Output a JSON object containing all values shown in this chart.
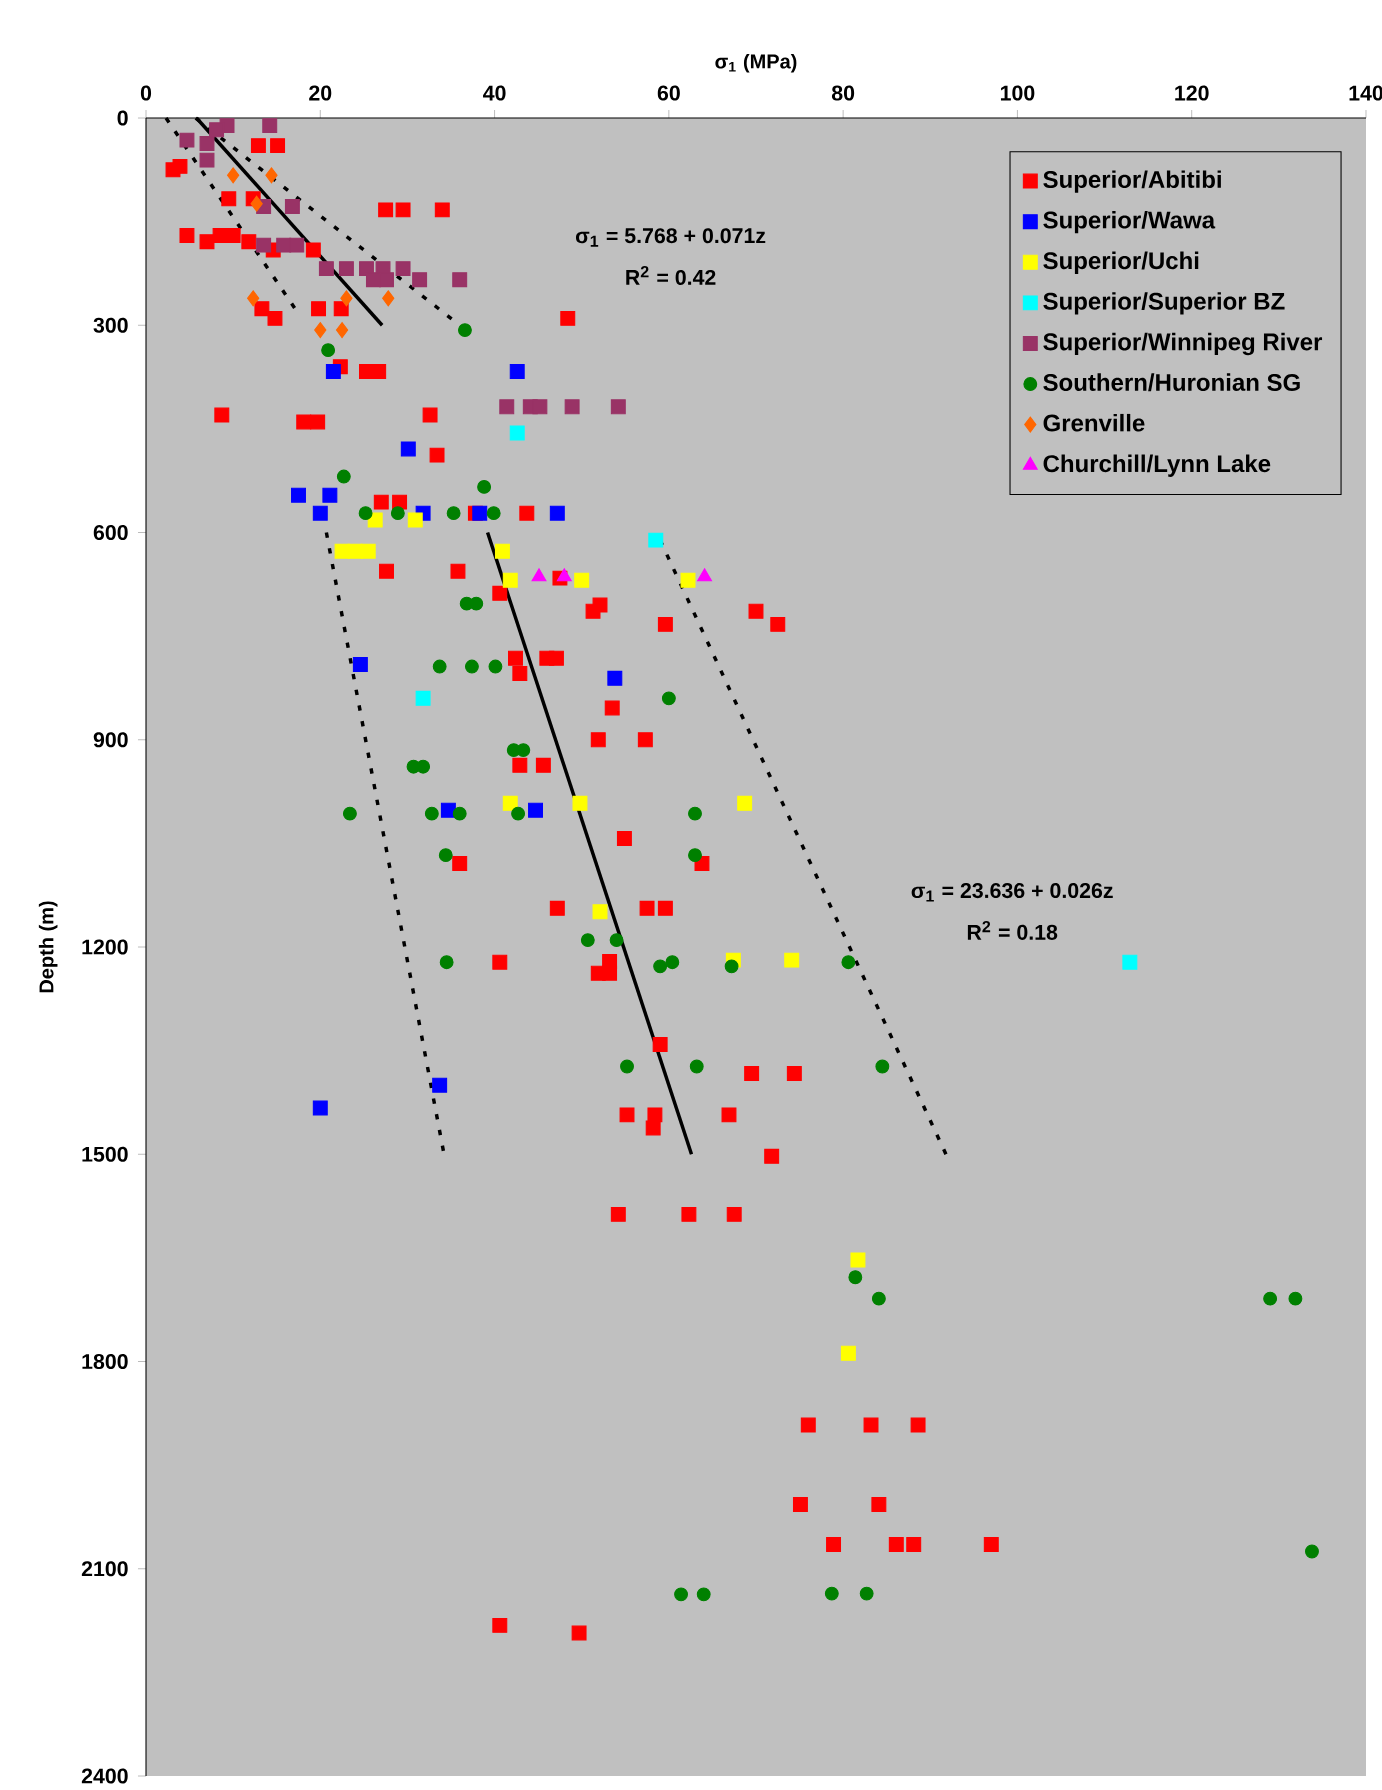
{
  "chart_data": {
    "type": "scatter",
    "xlabel": "σ$_{1}$ (MPa)",
    "ylabel": "Depth (m)",
    "xlim": [
      0,
      140
    ],
    "xticks": [
      0,
      20,
      40,
      60,
      80,
      100,
      120,
      140
    ],
    "ylim": [
      2400,
      0
    ],
    "yticks": [
      0,
      300,
      600,
      900,
      1200,
      1500,
      1800,
      2100,
      2400
    ],
    "grid": false,
    "legend": "top right",
    "annotations": [
      "σ$_{1}$ = 5.768 + 0.071z",
      "R$^{2}$ = 0.42",
      "σ$_{1}$ = 23.636 + 0.026z",
      "R$^{2}$ = 0.18"
    ],
    "series": [
      {
        "name": "Superior/Abitibi",
        "color": "#ff0000",
        "marker": "square",
        "x": [
          3.9,
          3.1,
          12.9,
          15.1,
          9.5,
          12.3,
          27.5,
          29.5,
          34.0,
          4.7,
          7.0,
          8.5,
          10.0,
          11.8,
          14.6,
          19.2,
          13.3,
          14.8,
          19.8,
          22.4,
          48.4,
          22.3,
          25.3,
          26.7,
          8.7,
          18.1,
          19.7,
          32.6,
          33.4,
          27.0,
          29.1,
          37.8,
          43.7,
          27.6,
          35.8,
          47.5,
          40.6,
          51.3,
          52.1,
          59.6,
          70.0,
          72.5,
          42.4,
          46.0,
          47.1,
          42.9,
          53.5,
          51.9,
          57.3,
          42.9,
          45.6,
          54.9,
          36.0,
          63.8,
          47.2,
          57.5,
          59.6,
          40.6,
          51.9,
          53.2,
          53.2,
          59.0,
          69.5,
          74.4,
          55.2,
          58.4,
          58.2,
          66.9,
          71.8,
          54.2,
          62.3,
          67.5,
          76.0,
          83.2,
          88.6,
          75.1,
          84.1,
          78.9,
          86.1,
          88.1,
          97.0,
          40.6,
          49.7
        ],
        "values": [
          70,
          75,
          40,
          40,
          117,
          117,
          133,
          133,
          133,
          170,
          179,
          170,
          170,
          179,
          191,
          191,
          276,
          290,
          276,
          276,
          290,
          360,
          367,
          367,
          430,
          440,
          440,
          430,
          488,
          556,
          556,
          572,
          572,
          656,
          656,
          666,
          688,
          714,
          705,
          733,
          714,
          733,
          782,
          782,
          782,
          804,
          854,
          900,
          900,
          937,
          937,
          1043,
          1079,
          1079,
          1144,
          1144,
          1144,
          1222,
          1238,
          1238,
          1221,
          1341,
          1383,
          1383,
          1443,
          1443,
          1462,
          1443,
          1503,
          1587,
          1587,
          1587,
          1892,
          1892,
          1892,
          2007,
          2007,
          2065,
          2065,
          2065,
          2065,
          2182,
          2193
        ]
      },
      {
        "name": "Superior/Wawa",
        "color": "#0000ff",
        "marker": "square",
        "x": [
          21.5,
          42.6,
          30.1,
          17.5,
          21.1,
          20.0,
          31.8,
          38.3,
          47.2,
          24.6,
          53.8,
          34.7,
          44.7,
          33.7,
          20.0
        ],
        "values": [
          367,
          367,
          479,
          546,
          546,
          572,
          572,
          572,
          572,
          791,
          811,
          1002,
          1002,
          1400,
          1433
        ]
      },
      {
        "name": "Superior/Uchi",
        "color": "#ffff00",
        "marker": "square",
        "x": [
          26.3,
          30.9,
          22.5,
          24.0,
          25.5,
          40.9,
          41.8,
          50.0,
          62.2,
          41.8,
          49.8,
          52.1,
          67.4,
          68.7,
          74.1,
          81.7,
          80.6
        ],
        "values": [
          582,
          582,
          627,
          627,
          627,
          627,
          669,
          669,
          669,
          992,
          992,
          1149,
          1219,
          992,
          1219,
          1653,
          1788
        ]
      },
      {
        "name": "Superior/Superior BZ",
        "color": "#00ffff",
        "marker": "square",
        "x": [
          42.6,
          58.5,
          31.8,
          112.9
        ],
        "values": [
          456,
          611,
          840,
          1222
        ]
      },
      {
        "name": "Superior/Winnipeg River",
        "color": "#993366",
        "marker": "square",
        "x": [
          9.3,
          14.2,
          4.7,
          7.0,
          7.0,
          8.1,
          13.5,
          16.8,
          13.5,
          15.8,
          17.3,
          20.7,
          23.0,
          25.3,
          27.2,
          29.5,
          31.4,
          36.0,
          26.1,
          27.6,
          41.4,
          44.1,
          45.2,
          48.9,
          54.2
        ],
        "values": [
          11,
          11,
          32,
          37,
          61,
          17,
          128,
          128,
          184,
          184,
          184,
          218,
          218,
          218,
          218,
          218,
          234,
          234,
          234,
          234,
          418,
          418,
          418,
          418,
          418
        ]
      },
      {
        "name": "Southern/Huronian SG",
        "color": "#008000",
        "marker": "circle",
        "x": [
          36.6,
          20.9,
          22.7,
          38.8,
          25.2,
          28.9,
          35.3,
          39.9,
          36.8,
          37.9,
          33.7,
          37.4,
          40.1,
          60.0,
          42.2,
          43.3,
          30.7,
          31.8,
          23.4,
          32.8,
          36.0,
          42.7,
          63.0,
          34.4,
          63.0,
          50.7,
          54.0,
          34.5,
          59.0,
          60.4,
          67.2,
          55.2,
          63.2,
          80.6,
          84.5,
          81.4,
          84.1,
          129.0,
          131.9,
          133.8,
          78.7,
          82.7,
          61.4,
          64.0
        ],
        "values": [
          307,
          336,
          519,
          534,
          572,
          572,
          572,
          572,
          703,
          703,
          794,
          794,
          794,
          840,
          915,
          915,
          939,
          939,
          1007,
          1007,
          1007,
          1007,
          1007,
          1067,
          1067,
          1190,
          1190,
          1222,
          1228,
          1222,
          1228,
          1373,
          1373,
          1222,
          1373,
          1678,
          1709,
          1709,
          1709,
          2075,
          2136,
          2136,
          2137,
          2137
        ]
      },
      {
        "name": "Grenville",
        "color": "#ff6600",
        "marker": "diamond",
        "x": [
          10.0,
          14.4,
          12.7,
          12.3,
          23.0,
          27.8,
          20.0,
          22.5
        ],
        "values": [
          83,
          83,
          124,
          261,
          261,
          261,
          307,
          307
        ]
      },
      {
        "name": "Churchill/Lynn Lake",
        "color": "#ff00ff",
        "marker": "triangle",
        "x": [
          45.1,
          48.0,
          64.1
        ],
        "values": [
          664,
          664,
          664
        ]
      },
      {
        "type": "line",
        "color": "#000000",
        "line_style": "solid",
        "x": [
          5.8,
          27.1
        ],
        "values": [
          0,
          300
        ]
      },
      {
        "type": "line",
        "color": "#000000",
        "line_style": "dotted",
        "x": [
          2.3,
          17.7
        ],
        "values": [
          0,
          287
        ]
      },
      {
        "type": "line",
        "color": "#000000",
        "line_style": "dotted",
        "x": [
          5.7,
          36.0
        ],
        "values": [
          0,
          300
        ]
      },
      {
        "type": "line",
        "color": "#000000",
        "line_style": "solid",
        "x": [
          39.2,
          62.6
        ],
        "values": [
          600,
          1500
        ]
      },
      {
        "type": "line",
        "color": "#000000",
        "line_style": "dotted",
        "x": [
          20.7,
          34.2
        ],
        "values": [
          600,
          1500
        ]
      },
      {
        "type": "line",
        "color": "#000000",
        "line_style": "dotted",
        "x": [
          59.0,
          91.8
        ],
        "values": [
          611,
          1500
        ]
      }
    ]
  }
}
